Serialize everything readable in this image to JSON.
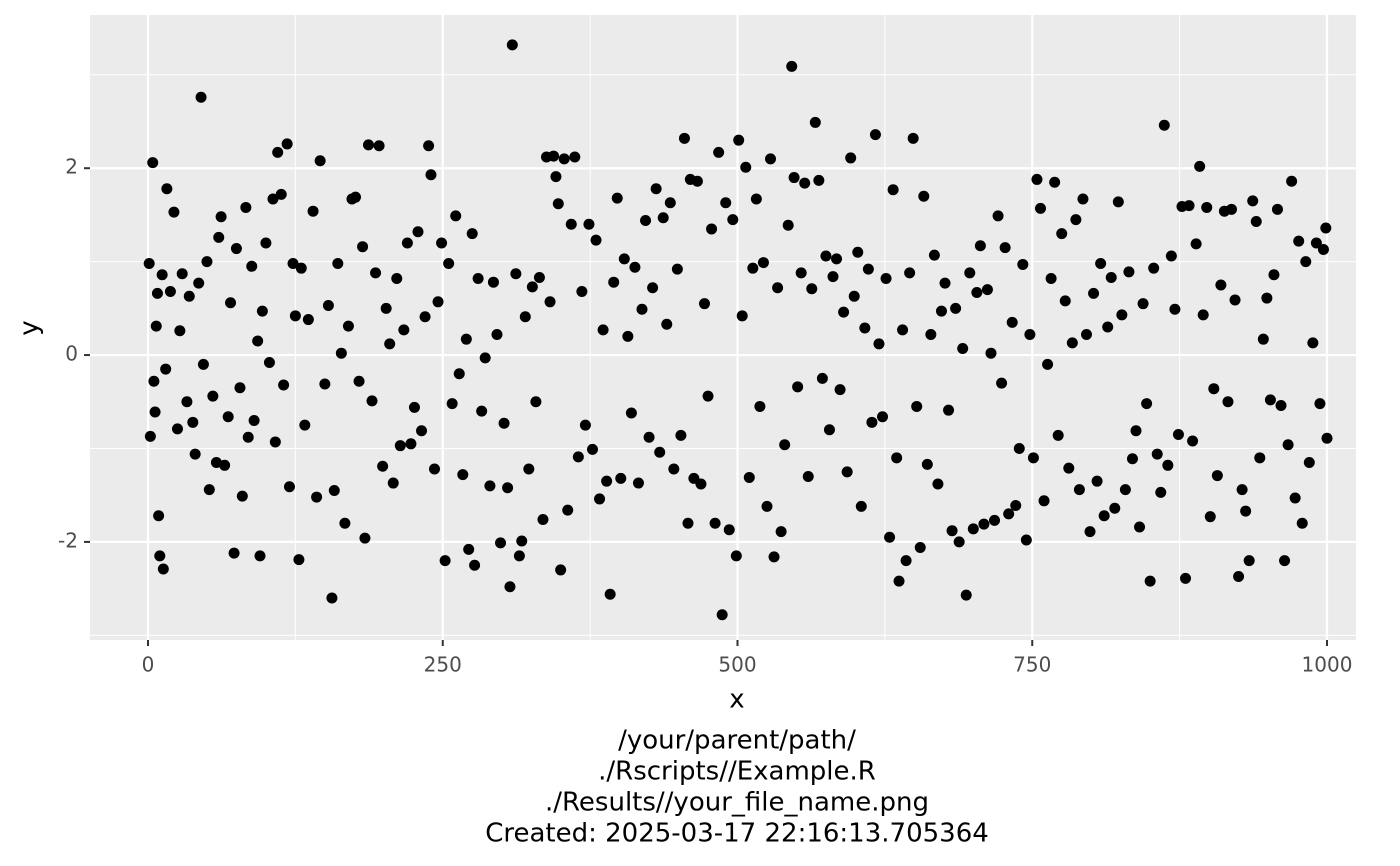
{
  "chart_data": {
    "type": "scatter",
    "x_label": "x",
    "y_label": "y",
    "caption": [
      "/your/parent/path/",
      "./Rscripts//Example.R",
      "./Results//your_file_name.png",
      "Created: 2025-03-17 22:16:13.705364"
    ],
    "color": "#000000",
    "panel_color": "#ebebeb",
    "grid": true,
    "xlim": [
      -49.2,
      1024.6
    ],
    "ylim": [
      -3.05,
      3.64
    ],
    "xticks": [
      0,
      250,
      500,
      750,
      1000
    ],
    "yticks": [
      -2,
      0,
      2
    ],
    "x_minor_grid": [
      125,
      375,
      625,
      875
    ],
    "y_minor_grid": [
      -3,
      -1,
      1,
      3
    ],
    "x": [
      1,
      2,
      4,
      5,
      6,
      7,
      8,
      9,
      10,
      12,
      13,
      15,
      16,
      19,
      22,
      25,
      27,
      29,
      33,
      35,
      38,
      40,
      43,
      45,
      47,
      50,
      52,
      55,
      58,
      60,
      62,
      65,
      68,
      70,
      73,
      75,
      78,
      80,
      83,
      85,
      88,
      90,
      93,
      95,
      97,
      100,
      103,
      106,
      108,
      110,
      113,
      115,
      118,
      120,
      123,
      125,
      128,
      130,
      133,
      136,
      140,
      143,
      146,
      150,
      153,
      156,
      158,
      161,
      164,
      167,
      170,
      173,
      176,
      179,
      182,
      184,
      187,
      190,
      193,
      196,
      199,
      202,
      205,
      208,
      211,
      214,
      217,
      220,
      223,
      226,
      229,
      232,
      235,
      238,
      240,
      243,
      246,
      249,
      252,
      255,
      258,
      261,
      264,
      267,
      270,
      272,
      275,
      277,
      280,
      283,
      286,
      290,
      293,
      296,
      299,
      302,
      305,
      307,
      309,
      312,
      315,
      317,
      320,
      323,
      326,
      329,
      332,
      335,
      338,
      341,
      344,
      346,
      348,
      350,
      353,
      356,
      359,
      362,
      365,
      368,
      371,
      374,
      377,
      380,
      383,
      386,
      389,
      392,
      395,
      398,
      401,
      404,
      407,
      410,
      413,
      416,
      419,
      422,
      425,
      428,
      431,
      434,
      437,
      440,
      443,
      446,
      449,
      452,
      455,
      458,
      460,
      463,
      466,
      469,
      472,
      475,
      478,
      481,
      484,
      487,
      490,
      493,
      496,
      499,
      501,
      504,
      507,
      510,
      513,
      516,
      519,
      522,
      525,
      528,
      531,
      534,
      537,
      540,
      543,
      546,
      548,
      551,
      554,
      557,
      560,
      563,
      566,
      569,
      572,
      575,
      578,
      581,
      584,
      587,
      590,
      593,
      596,
      599,
      602,
      605,
      608,
      611,
      614,
      617,
      620,
      623,
      626,
      629,
      632,
      635,
      637,
      640,
      643,
      646,
      649,
      652,
      655,
      658,
      661,
      664,
      667,
      670,
      673,
      676,
      679,
      682,
      685,
      688,
      691,
      694,
      697,
      700,
      703,
      706,
      709,
      712,
      715,
      718,
      721,
      724,
      727,
      730,
      733,
      736,
      739,
      742,
      745,
      748,
      751,
      754,
      757,
      760,
      763,
      766,
      769,
      772,
      775,
      778,
      781,
      784,
      787,
      790,
      793,
      796,
      799,
      802,
      805,
      808,
      811,
      814,
      817,
      820,
      823,
      826,
      829,
      832,
      835,
      838,
      841,
      844,
      847,
      850,
      853,
      856,
      859,
      862,
      865,
      868,
      871,
      874,
      877,
      880,
      883,
      886,
      889,
      892,
      895,
      898,
      901,
      904,
      907,
      910,
      913,
      916,
      919,
      922,
      925,
      928,
      931,
      934,
      937,
      940,
      943,
      946,
      949,
      952,
      955,
      958,
      961,
      964,
      967,
      970,
      973,
      976,
      979,
      982,
      985,
      988,
      991,
      994,
      997,
      999,
      1000
    ],
    "values": [
      0.98,
      -0.87,
      2.06,
      -0.28,
      -0.61,
      0.31,
      0.66,
      -1.72,
      -2.15,
      0.86,
      -2.29,
      -0.15,
      1.78,
      0.68,
      1.53,
      -0.79,
      0.26,
      0.87,
      -0.5,
      0.63,
      -0.72,
      -1.06,
      0.77,
      2.76,
      -0.1,
      1.0,
      -1.44,
      -0.44,
      -1.15,
      1.26,
      1.48,
      -1.18,
      -0.66,
      0.56,
      -2.12,
      1.14,
      -0.35,
      -1.51,
      1.58,
      -0.88,
      0.95,
      -0.7,
      0.15,
      -2.15,
      0.47,
      1.2,
      -0.08,
      1.67,
      -0.93,
      2.17,
      1.72,
      -0.32,
      2.26,
      -1.41,
      0.98,
      0.42,
      -2.19,
      0.93,
      -0.75,
      0.38,
      1.54,
      -1.52,
      2.08,
      -0.31,
      0.53,
      -2.6,
      -1.45,
      0.98,
      0.02,
      -1.8,
      0.31,
      1.67,
      1.69,
      -0.28,
      1.16,
      -1.96,
      2.25,
      -0.49,
      0.88,
      2.24,
      -1.19,
      0.5,
      0.12,
      -1.37,
      0.82,
      -0.97,
      0.27,
      1.2,
      -0.95,
      -0.56,
      1.32,
      -0.81,
      0.41,
      2.24,
      1.93,
      -1.22,
      0.57,
      1.2,
      -2.2,
      0.98,
      -0.52,
      1.49,
      -0.2,
      -1.28,
      0.17,
      -2.08,
      1.3,
      -2.25,
      0.82,
      -0.6,
      -0.03,
      -1.4,
      0.78,
      0.22,
      -2.01,
      -0.73,
      -1.42,
      -2.48,
      3.32,
      0.87,
      -2.15,
      -1.99,
      0.41,
      -1.22,
      0.73,
      -0.5,
      0.83,
      -1.76,
      2.12,
      0.57,
      2.13,
      1.91,
      1.62,
      -2.3,
      2.1,
      -1.66,
      1.4,
      2.12,
      -1.09,
      0.68,
      -0.75,
      1.4,
      -1.01,
      1.23,
      -1.54,
      0.27,
      -1.35,
      -2.56,
      0.78,
      1.68,
      -1.32,
      1.03,
      0.2,
      -0.62,
      0.94,
      -1.37,
      0.49,
      1.44,
      -0.88,
      0.72,
      1.78,
      -1.04,
      1.47,
      0.33,
      1.63,
      -1.22,
      0.92,
      -0.86,
      2.32,
      -1.8,
      1.88,
      -1.32,
      1.86,
      -1.38,
      0.55,
      -0.44,
      1.35,
      -1.8,
      2.17,
      -2.78,
      1.63,
      -1.87,
      1.45,
      -2.15,
      2.3,
      0.42,
      2.01,
      -1.31,
      0.93,
      1.67,
      -0.55,
      0.99,
      -1.62,
      2.1,
      -2.16,
      0.72,
      -1.89,
      -0.96,
      1.39,
      3.09,
      1.9,
      -0.34,
      0.88,
      1.84,
      -1.3,
      0.71,
      2.49,
      1.87,
      -0.25,
      1.06,
      -0.8,
      0.84,
      1.03,
      -0.37,
      0.46,
      -1.25,
      2.11,
      0.63,
      1.1,
      -1.62,
      0.29,
      0.92,
      -0.72,
      2.36,
      0.12,
      -0.66,
      0.82,
      -1.95,
      1.77,
      -1.1,
      -2.42,
      0.27,
      -2.2,
      0.88,
      2.32,
      -0.55,
      -2.06,
      1.7,
      -1.17,
      0.22,
      1.07,
      -1.38,
      0.47,
      0.77,
      -0.59,
      -1.88,
      0.5,
      -2.0,
      0.07,
      -2.57,
      0.88,
      -1.86,
      0.67,
      1.17,
      -1.81,
      0.7,
      0.02,
      -1.77,
      1.49,
      -0.3,
      1.15,
      -1.7,
      0.35,
      -1.61,
      -1.0,
      0.97,
      -1.98,
      0.22,
      -1.1,
      1.88,
      1.57,
      -1.56,
      -0.1,
      0.82,
      1.85,
      -0.86,
      1.3,
      0.58,
      -1.21,
      0.13,
      1.45,
      -1.44,
      1.67,
      0.22,
      -1.89,
      0.66,
      -1.35,
      0.98,
      -1.72,
      0.3,
      0.83,
      -1.64,
      1.64,
      0.43,
      -1.44,
      0.89,
      -1.11,
      -0.81,
      -1.84,
      0.55,
      -0.52,
      -2.42,
      0.93,
      -1.06,
      -1.47,
      2.46,
      -1.18,
      1.06,
      0.49,
      -0.85,
      1.59,
      -2.39,
      1.6,
      -0.92,
      1.19,
      2.02,
      0.43,
      1.58,
      -1.73,
      -0.36,
      -1.29,
      0.75,
      1.54,
      -0.5,
      1.56,
      0.59,
      -2.37,
      -1.44,
      -1.67,
      -2.2,
      1.65,
      1.43,
      -1.1,
      0.17,
      0.61,
      -0.48,
      0.86,
      1.56,
      -0.54,
      -2.2,
      -0.96,
      1.86,
      -1.53,
      1.22,
      -1.8,
      1.0,
      -1.15,
      0.13,
      1.2,
      -0.52,
      1.13,
      1.36,
      -0.89
    ]
  }
}
